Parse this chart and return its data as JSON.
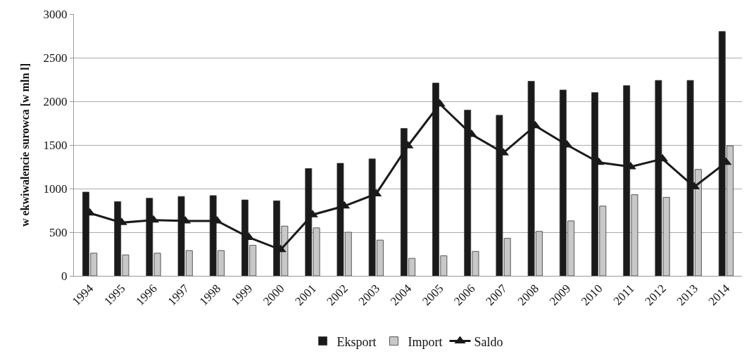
{
  "chart_data": {
    "type": "bar",
    "ylabel": "w ekwiwalencie surowca [w mln l]",
    "categories": [
      "1994",
      "1995",
      "1996",
      "1997",
      "1998",
      "1999",
      "2000",
      "2001",
      "2002",
      "2003",
      "2004",
      "2005",
      "2006",
      "2007",
      "2008",
      "2009",
      "2010",
      "2011",
      "2012",
      "2013",
      "2014"
    ],
    "series": [
      {
        "name": "Eksport",
        "color": "#1a1a1a",
        "values": [
          960,
          850,
          890,
          910,
          920,
          870,
          860,
          1230,
          1290,
          1340,
          1690,
          2210,
          1900,
          1840,
          2230,
          2130,
          2100,
          2180,
          2240,
          2240,
          2800
        ]
      },
      {
        "name": "Import",
        "color": "#c8c8c8",
        "values": [
          260,
          240,
          260,
          290,
          290,
          350,
          570,
          550,
          500,
          410,
          200,
          230,
          280,
          430,
          510,
          630,
          800,
          930,
          900,
          1220,
          1490
        ]
      },
      {
        "name": "Saldo",
        "type": "line",
        "color": "#1a1a1a",
        "marker": "triangle",
        "values": [
          720,
          610,
          640,
          630,
          630,
          440,
          300,
          700,
          800,
          940,
          1490,
          1970,
          1620,
          1410,
          1720,
          1500,
          1300,
          1250,
          1340,
          1020,
          1300
        ]
      }
    ],
    "ylim": [
      0,
      3000
    ],
    "yticks": [
      0,
      500,
      1000,
      1500,
      2000,
      2500,
      3000
    ],
    "grid": "y",
    "legend": "bottom"
  }
}
